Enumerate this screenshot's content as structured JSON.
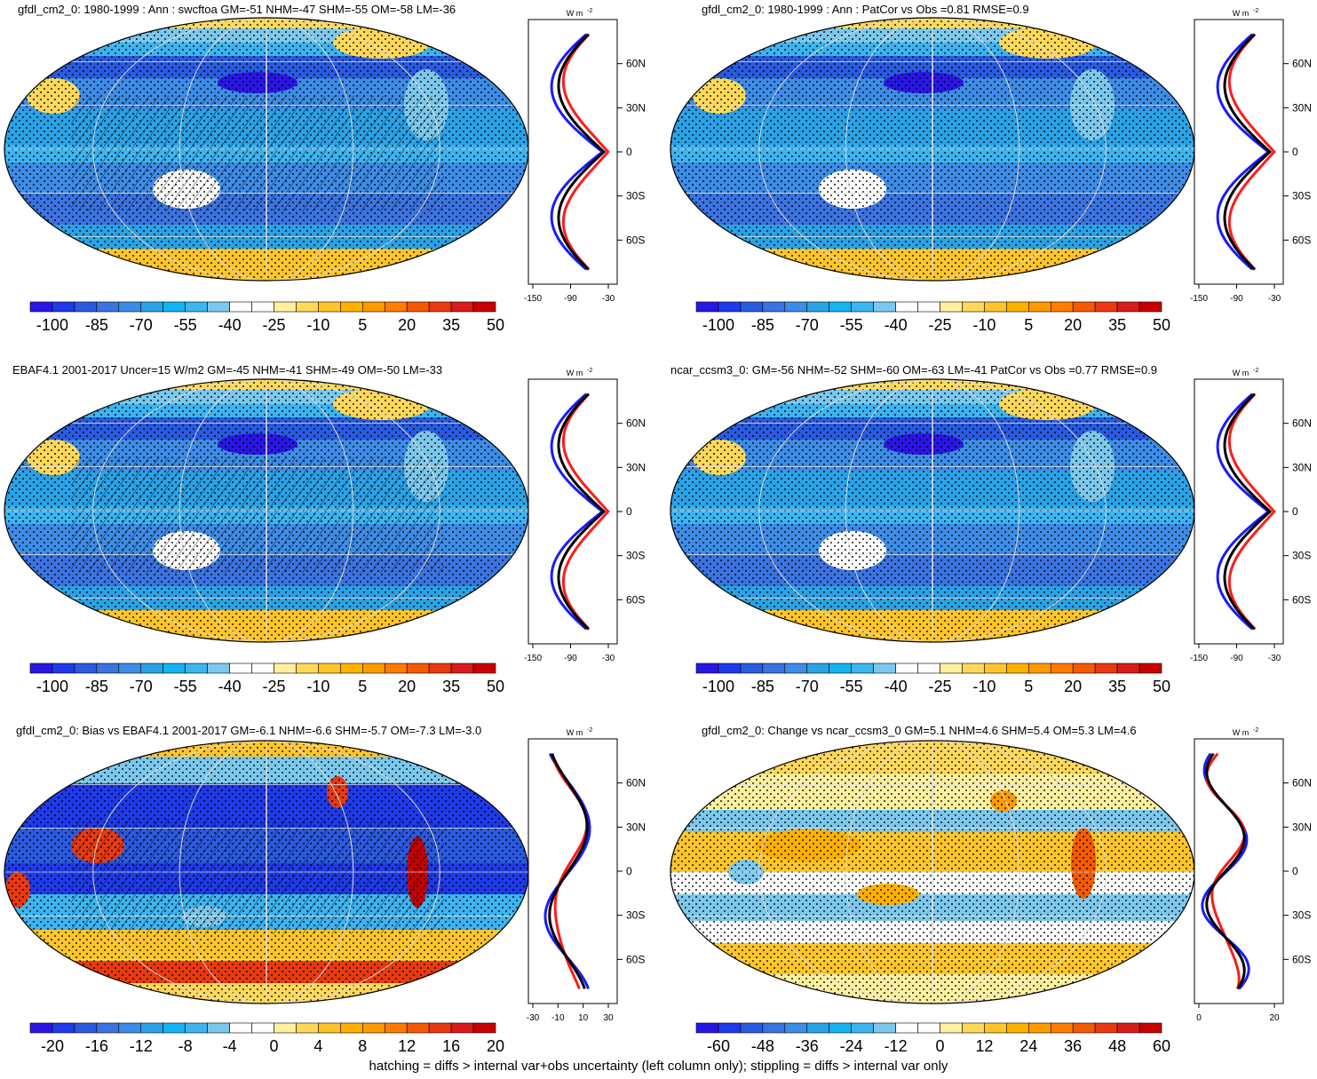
{
  "units": "W m⁻²",
  "footer": "hatching = diffs > internal var+obs uncertainty (left column only); stippling = diffs > internal var only",
  "colors": {
    "sequential": [
      "#2a16e4",
      "#1f3ae9",
      "#2a5ae0",
      "#3b73e0",
      "#3d8ce6",
      "#2aa2e6",
      "#14b4f0",
      "#3cb4f0",
      "#7cc8ec",
      "#ffffff",
      "#ffffff",
      "#fff0a0",
      "#ffd85a",
      "#ffc52a",
      "#ffb000",
      "#ff9a00",
      "#ff7c00",
      "#f45a00",
      "#e83a10",
      "#d81c1c",
      "#c80000"
    ],
    "profile": {
      "blue": "#1a1aff",
      "red": "#ff1a1a",
      "black": "#000000"
    }
  },
  "chart_data": [
    {
      "type": "heatmap",
      "title": "gfdl_cm2_0: 1980-1999 : Ann : swcftoa GM=-51 NHM=-47 SHM=-55 OM=-58 LM=-36",
      "colorbar_labels": [
        "-100",
        "-85",
        "-70",
        "-55",
        "-40",
        "-25",
        "-10",
        "5",
        "20",
        "35",
        "50"
      ],
      "profile_xticks": [
        "-150",
        "-90",
        "-30"
      ],
      "profile_yticks": [
        "60N",
        "30N",
        "0",
        "30S",
        "60S"
      ],
      "profile_unit_label": "W m",
      "hatching": true,
      "style": "clim"
    },
    {
      "type": "heatmap",
      "title": "gfdl_cm2_0: 1980-1999 : Ann : PatCor vs Obs =0.81 RMSE=0.9",
      "colorbar_labels": [
        "-100",
        "-85",
        "-70",
        "-55",
        "-40",
        "-25",
        "-10",
        "5",
        "20",
        "35",
        "50"
      ],
      "profile_xticks": [
        "-150",
        "-90",
        "-30"
      ],
      "profile_yticks": [
        "60N",
        "30N",
        "0",
        "30S",
        "60S"
      ],
      "profile_unit_label": "W m",
      "hatching": false,
      "style": "clim"
    },
    {
      "type": "heatmap",
      "title": "EBAF4.1 2001-2017 Uncer=15 W/m2 GM=-45 NHM=-41 SHM=-49 OM=-50 LM=-33",
      "colorbar_labels": [
        "-100",
        "-85",
        "-70",
        "-55",
        "-40",
        "-25",
        "-10",
        "5",
        "20",
        "35",
        "50"
      ],
      "profile_xticks": [
        "-150",
        "-90",
        "-30"
      ],
      "profile_yticks": [
        "60N",
        "30N",
        "0",
        "30S",
        "60S"
      ],
      "profile_unit_label": "W m",
      "hatching": true,
      "style": "clim"
    },
    {
      "type": "heatmap",
      "title": "ncar_ccsm3_0: GM=-56 NHM=-52 SHM=-60 OM=-63 LM=-41 PatCor vs Obs =0.77 RMSE=0.9",
      "colorbar_labels": [
        "-100",
        "-85",
        "-70",
        "-55",
        "-40",
        "-25",
        "-10",
        "5",
        "20",
        "35",
        "50"
      ],
      "profile_xticks": [
        "-150",
        "-90",
        "-30"
      ],
      "profile_yticks": [
        "60N",
        "30N",
        "0",
        "30S",
        "60S"
      ],
      "profile_unit_label": "W m",
      "hatching": false,
      "style": "clim"
    },
    {
      "type": "heatmap",
      "title": "gfdl_cm2_0: Bias vs EBAF4.1 2001-2017 GM=-6.1 NHM=-6.6 SHM=-5.7 OM=-7.3 LM=-3.0",
      "colorbar_labels": [
        "-20",
        "-16",
        "-12",
        "-8",
        "-4",
        "0",
        "4",
        "8",
        "12",
        "16",
        "20"
      ],
      "profile_xticks": [
        "-30",
        "-10",
        "10",
        "30"
      ],
      "profile_yticks": [
        "60N",
        "30N",
        "0",
        "30S",
        "60S"
      ],
      "profile_unit_label": "W m",
      "hatching": true,
      "style": "bias"
    },
    {
      "type": "heatmap",
      "title": "gfdl_cm2_0: Change vs ncar_ccsm3_0 GM=5.1 NHM=4.6 SHM=5.4 OM=5.3 LM=4.6",
      "colorbar_labels": [
        "-60",
        "-48",
        "-36",
        "-24",
        "-12",
        "0",
        "12",
        "24",
        "36",
        "48",
        "60"
      ],
      "profile_xticks": [
        "0",
        "20"
      ],
      "profile_yticks": [
        "60N",
        "30N",
        "0",
        "30S",
        "60S"
      ],
      "profile_unit_label": "W m",
      "hatching": false,
      "style": "change"
    }
  ]
}
